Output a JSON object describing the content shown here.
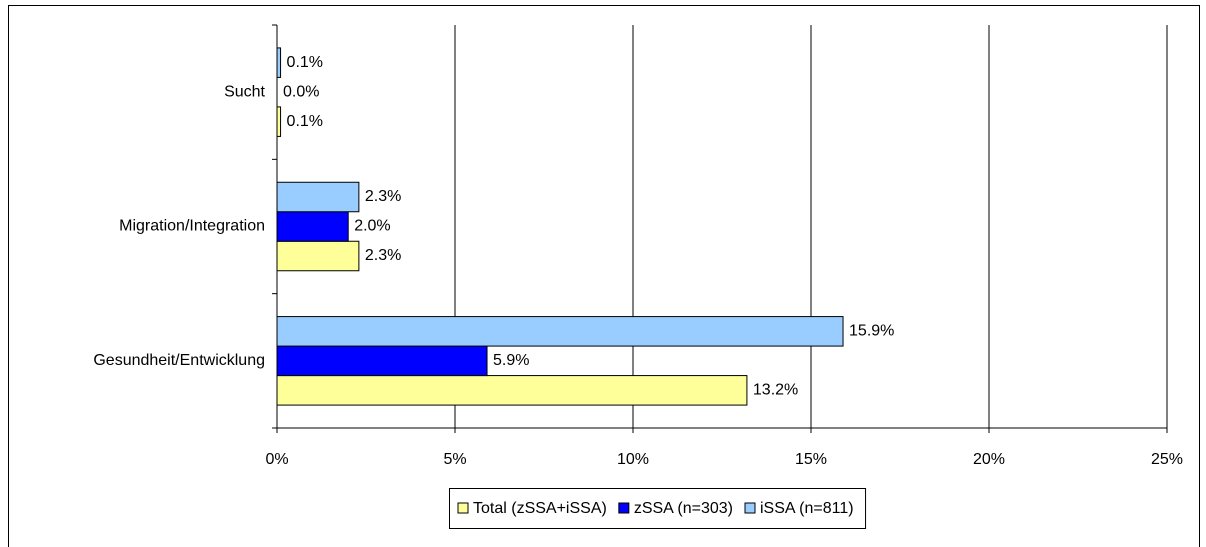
{
  "chart_data": {
    "type": "hbar",
    "categories": [
      "Sucht",
      "Migration/Integration",
      "Gesundheit/Entwicklung"
    ],
    "series": [
      {
        "name": "Total (zSSA+iSSA)",
        "color": "#ffff99",
        "values": [
          0.1,
          2.3,
          13.2
        ],
        "value_labels": [
          "0.1%",
          "2.3%",
          "13.2%"
        ]
      },
      {
        "name": "zSSA (n=303)",
        "color": "#0000ff",
        "values": [
          0.0,
          2.0,
          5.9
        ],
        "value_labels": [
          "0.0%",
          "2.0%",
          "5.9%"
        ]
      },
      {
        "name": "iSSA (n=811)",
        "color": "#99ccff",
        "values": [
          0.1,
          2.3,
          15.9
        ],
        "value_labels": [
          "0.1%",
          "2.3%",
          "15.9%"
        ]
      }
    ],
    "xlim": [
      0,
      25
    ],
    "xticks": [
      {
        "value": 0,
        "label": "0%"
      },
      {
        "value": 5,
        "label": "5%"
      },
      {
        "value": 10,
        "label": "10%"
      },
      {
        "value": 15,
        "label": "15%"
      },
      {
        "value": 20,
        "label": "20%"
      },
      {
        "value": 25,
        "label": "25%"
      }
    ],
    "grid": true,
    "legend": "bottom"
  }
}
